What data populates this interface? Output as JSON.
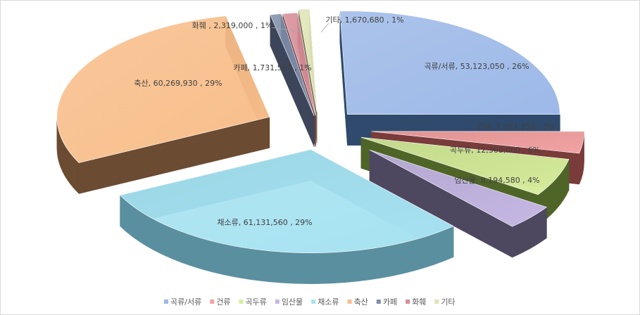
{
  "chart_data": {
    "type": "pie",
    "style": "3d-exploded",
    "categories": [
      "곡류/서류",
      "건류",
      "곡두류",
      "임산물",
      "채소류",
      "축산",
      "카페",
      "화훼",
      "기타"
    ],
    "values": [
      53123050,
      7061250,
      12368000,
      8194580,
      61131560,
      60269930,
      1731500,
      2319000,
      1670680
    ],
    "percent_labels": [
      "26%",
      "3%",
      "6%",
      "4%",
      "29%",
      "29%",
      "1%",
      "1%",
      "1%"
    ],
    "data_labels": [
      "곡류/서류, 53,123,050 , 26%",
      "건류, 7,061,250 , 3%",
      "곡두류, 12,368,000 , 6%",
      "임산물, 8,194,580 , 4%",
      "채소류, 61,131,560 , 29%",
      "축산, 60,269,930 , 29%",
      "카페, 1,731,500 , 1%",
      "화훼 , 2,319,000 , 1%",
      "기타, 1,670,680 , 1%"
    ],
    "colors": [
      "#9DB9E8",
      "#F2A3A3",
      "#D6EC9C",
      "#C5B8E4",
      "#A6E2F1",
      "#F8BE8A",
      "#7E8DA8",
      "#D68C97",
      "#E0E3B4"
    ],
    "side_colors": [
      "#2F4A6D",
      "#7A3B3B",
      "#4F6528",
      "#4E4760",
      "#5A8FA0",
      "#6B4B31",
      "#3C4559",
      "#6E3E45",
      "#767752"
    ],
    "title": "",
    "legend": {
      "position": "bottom",
      "entries": [
        "곡류/서류",
        "건류",
        "곡두류",
        "임산물",
        "채소류",
        "축산",
        "카페",
        "화훼",
        "기타"
      ]
    }
  }
}
